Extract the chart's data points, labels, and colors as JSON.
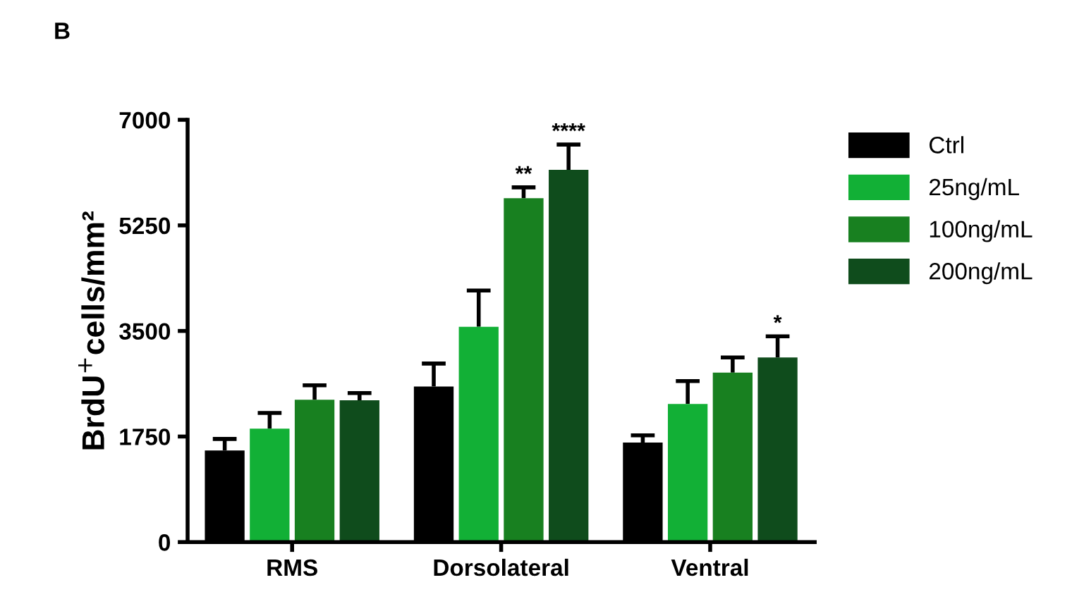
{
  "chart_data": {
    "type": "bar",
    "ylabel": "BrdU$^{+}$cells/mm²",
    "categories": [
      "RMS",
      "Dorsolateral",
      "Ventral"
    ],
    "series": [
      {
        "name": "Ctrl",
        "color": "#000000",
        "values": [
          1520,
          2580,
          1650
        ],
        "errors": [
          [
            1520,
            1710
          ],
          [
            2580,
            2960
          ],
          [
            1650,
            1770
          ]
        ]
      },
      {
        "name": "25ng/mL",
        "color": "#12b036",
        "values": [
          1880,
          3570,
          2290
        ],
        "errors": [
          [
            1880,
            2140
          ],
          [
            3570,
            4170
          ],
          [
            2290,
            2670
          ]
        ]
      },
      {
        "name": "100ng/mL",
        "color": "#188020",
        "values": [
          2360,
          5700,
          2810
        ],
        "errors": [
          [
            2360,
            2600
          ],
          [
            5700,
            5880
          ],
          [
            2810,
            3060
          ]
        ],
        "value_labels": [
          null,
          "**",
          null
        ]
      },
      {
        "name": "200ng/mL",
        "color": "#0f4c1c",
        "values": [
          2350,
          6170,
          3060
        ],
        "errors": [
          [
            2350,
            2470
          ],
          [
            6170,
            6590
          ],
          [
            3060,
            3410
          ]
        ],
        "value_labels": [
          null,
          "****",
          "*"
        ]
      }
    ],
    "ylim": [
      0,
      7000
    ],
    "yticks": [
      0,
      1750,
      3500,
      5250,
      7000
    ],
    "grid": false,
    "legend": "right",
    "annotations": [
      "B"
    ]
  }
}
